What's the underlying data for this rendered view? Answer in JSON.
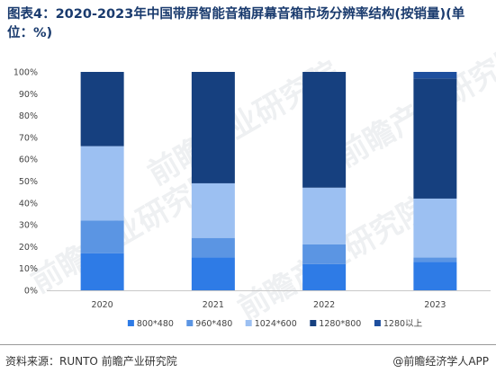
{
  "title": "图表4：2020-2023年中国带屏智能音箱屏幕音箱市场分辨率结构(按销量)(单位：%)",
  "source": "资料来源：RUNTO 前瞻产业研究院",
  "credit": "@前瞻经济学人APP",
  "watermark": "前瞻产业研究院",
  "chart_data": {
    "type": "bar",
    "stacked": true,
    "categories": [
      "2020",
      "2021",
      "2022",
      "2023"
    ],
    "series": [
      {
        "name": "800*480",
        "color": "#2e7be6",
        "values": [
          17,
          15,
          12,
          13
        ]
      },
      {
        "name": "960*480",
        "color": "#5b95e3",
        "values": [
          15,
          9,
          9,
          2
        ]
      },
      {
        "name": "1024*600",
        "color": "#9cc0f2",
        "values": [
          34,
          25,
          26,
          27
        ]
      },
      {
        "name": "1280*800",
        "color": "#16407f",
        "values": [
          34,
          51,
          53,
          55
        ]
      },
      {
        "name": "1280以上",
        "color": "#1e4f9e",
        "values": [
          0,
          0,
          0,
          3
        ]
      }
    ],
    "yticks": [
      "0%",
      "10%",
      "20%",
      "30%",
      "40%",
      "50%",
      "60%",
      "70%",
      "80%",
      "90%",
      "100%"
    ],
    "ylim": [
      0,
      100
    ],
    "grid": false,
    "legend": "bottom"
  }
}
